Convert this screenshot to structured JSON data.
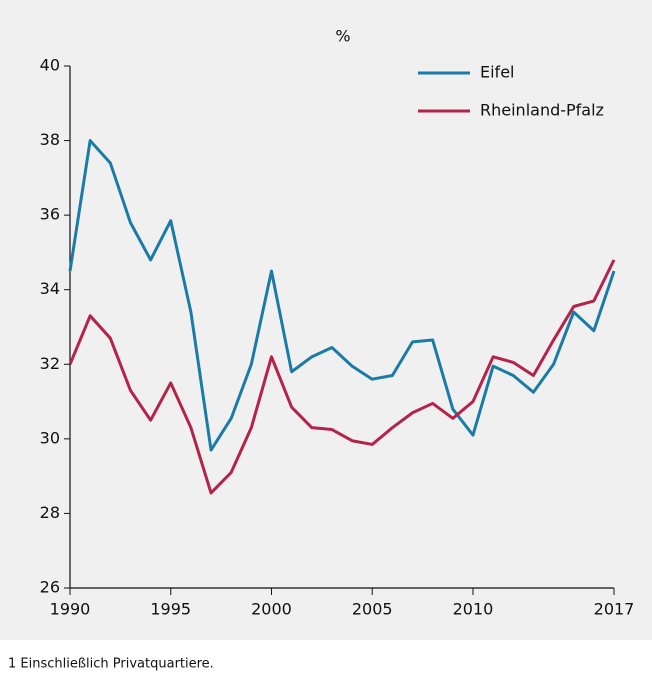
{
  "chart_data": {
    "type": "line",
    "y_label": "%",
    "x": [
      1990,
      1991,
      1992,
      1993,
      1994,
      1995,
      1996,
      1997,
      1998,
      1999,
      2000,
      2001,
      2002,
      2003,
      2004,
      2005,
      2006,
      2007,
      2008,
      2009,
      2010,
      2011,
      2012,
      2013,
      2014,
      2015,
      2016,
      2017
    ],
    "series": [
      {
        "name": "Eifel",
        "color": "#1a7ca6",
        "values": [
          34.5,
          38.0,
          37.4,
          35.8,
          34.8,
          35.85,
          33.4,
          29.7,
          30.55,
          32.0,
          34.5,
          31.8,
          32.2,
          32.45,
          31.95,
          31.6,
          31.7,
          32.6,
          32.65,
          30.8,
          30.1,
          31.95,
          31.7,
          31.25,
          32.0,
          33.4,
          32.9,
          34.5
        ]
      },
      {
        "name": "Rheinland-Pfalz",
        "color": "#b5224a",
        "values": [
          32.0,
          33.3,
          32.7,
          31.3,
          30.5,
          31.5,
          30.3,
          28.55,
          29.1,
          30.3,
          32.2,
          30.85,
          30.3,
          30.25,
          29.95,
          29.85,
          30.3,
          30.7,
          30.95,
          30.55,
          31.0,
          32.2,
          32.05,
          31.7,
          32.65,
          33.55,
          33.7,
          34.8
        ]
      }
    ],
    "xlim": [
      1990,
      2017
    ],
    "xticks": [
      1990,
      1995,
      2000,
      2005,
      2010,
      2017
    ],
    "ylim": [
      26,
      40
    ],
    "yticks": [
      26,
      28,
      30,
      32,
      34,
      36,
      38,
      40
    ],
    "legend": "upper right",
    "footnote": "1 Einschließlich Privatquartiere."
  }
}
